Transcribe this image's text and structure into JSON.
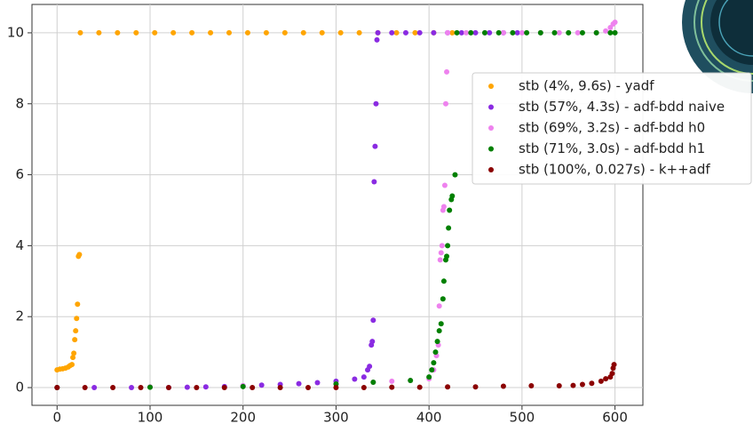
{
  "chart_data": {
    "type": "scatter",
    "xlim": [
      -27,
      630
    ],
    "ylim": [
      -0.5,
      10.8
    ],
    "xticks": [
      0,
      100,
      200,
      300,
      400,
      500,
      600
    ],
    "yticks": [
      0,
      2,
      4,
      6,
      8,
      10
    ],
    "grid": true,
    "legend": "upper right",
    "series": [
      {
        "name": "stb (4%, 9.6s) - yadf",
        "color": "#ffa500",
        "x": [
          0,
          3,
          6,
          9,
          12,
          14,
          16,
          17,
          18,
          19,
          20,
          21,
          22,
          23,
          24,
          25,
          45,
          65,
          85,
          105,
          125,
          145,
          165,
          185,
          205,
          225,
          245,
          265,
          285,
          305,
          325,
          345,
          365,
          385,
          405,
          425
        ],
        "y": [
          0.5,
          0.52,
          0.53,
          0.55,
          0.58,
          0.62,
          0.65,
          0.85,
          0.97,
          1.35,
          1.6,
          1.95,
          2.35,
          3.7,
          3.75,
          10,
          10,
          10,
          10,
          10,
          10,
          10,
          10,
          10,
          10,
          10,
          10,
          10,
          10,
          10,
          10,
          10,
          10,
          10,
          10,
          10
        ]
      },
      {
        "name": "stb (57%, 4.3s) - adf-bdd naive",
        "color": "#8a2be2",
        "x": [
          0,
          40,
          80,
          120,
          140,
          160,
          180,
          200,
          220,
          240,
          260,
          280,
          300,
          320,
          330,
          334,
          336,
          338,
          339,
          340,
          341,
          342,
          343,
          344,
          345,
          360,
          375,
          390,
          405,
          420,
          435,
          450,
          465,
          480,
          495
        ],
        "y": [
          0,
          0,
          0,
          0,
          0.01,
          0.02,
          0.03,
          0.05,
          0.07,
          0.09,
          0.11,
          0.14,
          0.18,
          0.24,
          0.3,
          0.5,
          0.6,
          1.2,
          1.3,
          1.9,
          5.8,
          6.8,
          8.0,
          9.8,
          10,
          10,
          10,
          10,
          10,
          10,
          10,
          10,
          10,
          10,
          10
        ]
      },
      {
        "name": "stb (69%, 3.2s) - adf-bdd h0",
        "color": "#ee82ee",
        "x": [
          0,
          100,
          200,
          300,
          340,
          360,
          380,
          400,
          405,
          408,
          410,
          411,
          412,
          413,
          414,
          415,
          416,
          417,
          418,
          419,
          420,
          440,
          460,
          480,
          500,
          520,
          540,
          560,
          580,
          590,
          595,
          598,
          600
        ],
        "y": [
          0,
          0.02,
          0.05,
          0.1,
          0.15,
          0.18,
          0.2,
          0.25,
          0.5,
          0.9,
          1.2,
          2.3,
          3.6,
          3.8,
          4.0,
          5.0,
          5.1,
          5.7,
          8.0,
          8.9,
          10,
          10,
          10,
          10,
          10,
          10,
          10,
          10,
          10,
          10.05,
          10.15,
          10.25,
          10.3
        ]
      },
      {
        "name": "stb (71%, 3.0s) - adf-bdd h1",
        "color": "#008000",
        "x": [
          0,
          100,
          200,
          300,
          340,
          380,
          400,
          403,
          405,
          407,
          409,
          411,
          413,
          415,
          416,
          418,
          419,
          420,
          421,
          422,
          424,
          425,
          428,
          430,
          445,
          460,
          475,
          490,
          505,
          520,
          535,
          550,
          565,
          580,
          595,
          600
        ],
        "y": [
          0,
          0.01,
          0.03,
          0.1,
          0.15,
          0.2,
          0.3,
          0.5,
          0.7,
          1.0,
          1.3,
          1.6,
          1.8,
          2.5,
          3.0,
          3.6,
          3.7,
          4.0,
          4.5,
          5.0,
          5.3,
          5.4,
          6.0,
          10,
          10,
          10,
          10,
          10,
          10,
          10,
          10,
          10,
          10,
          10,
          10,
          10
        ]
      },
      {
        "name": "stb (100%, 0.027s) - k++adf",
        "color": "#8b0000",
        "x": [
          0,
          30,
          60,
          90,
          120,
          150,
          180,
          210,
          240,
          270,
          300,
          330,
          360,
          390,
          420,
          450,
          480,
          510,
          540,
          555,
          565,
          575,
          585,
          590,
          595,
          597,
          598,
          599
        ],
        "y": [
          0,
          0,
          0,
          0,
          0,
          0,
          0,
          0,
          0,
          0,
          0,
          0,
          0.01,
          0.01,
          0.02,
          0.02,
          0.04,
          0.05,
          0.05,
          0.06,
          0.09,
          0.12,
          0.18,
          0.25,
          0.3,
          0.4,
          0.55,
          0.65
        ]
      }
    ]
  }
}
